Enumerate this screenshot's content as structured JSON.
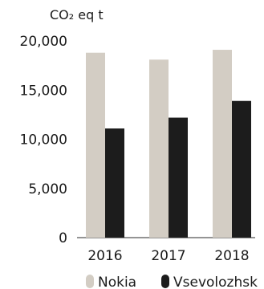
{
  "chart_data": {
    "type": "bar",
    "unit_label": "CO₂ eq t",
    "categories": [
      "2016",
      "2017",
      "2018"
    ],
    "series": [
      {
        "name": "Nokia",
        "values": [
          18800,
          18100,
          19100
        ],
        "color": "#d3cdc4"
      },
      {
        "name": "Vsevolozhsk",
        "values": [
          11100,
          12200,
          13900
        ],
        "color": "#1c1c1c"
      }
    ],
    "ylim": [
      0,
      20000
    ],
    "yticks": [
      "0",
      "5,000",
      "10,000",
      "15,000",
      "20,000"
    ],
    "ytick_values": [
      0,
      5000,
      10000,
      15000,
      20000
    ],
    "grid": false,
    "legend_position": "bottom"
  }
}
